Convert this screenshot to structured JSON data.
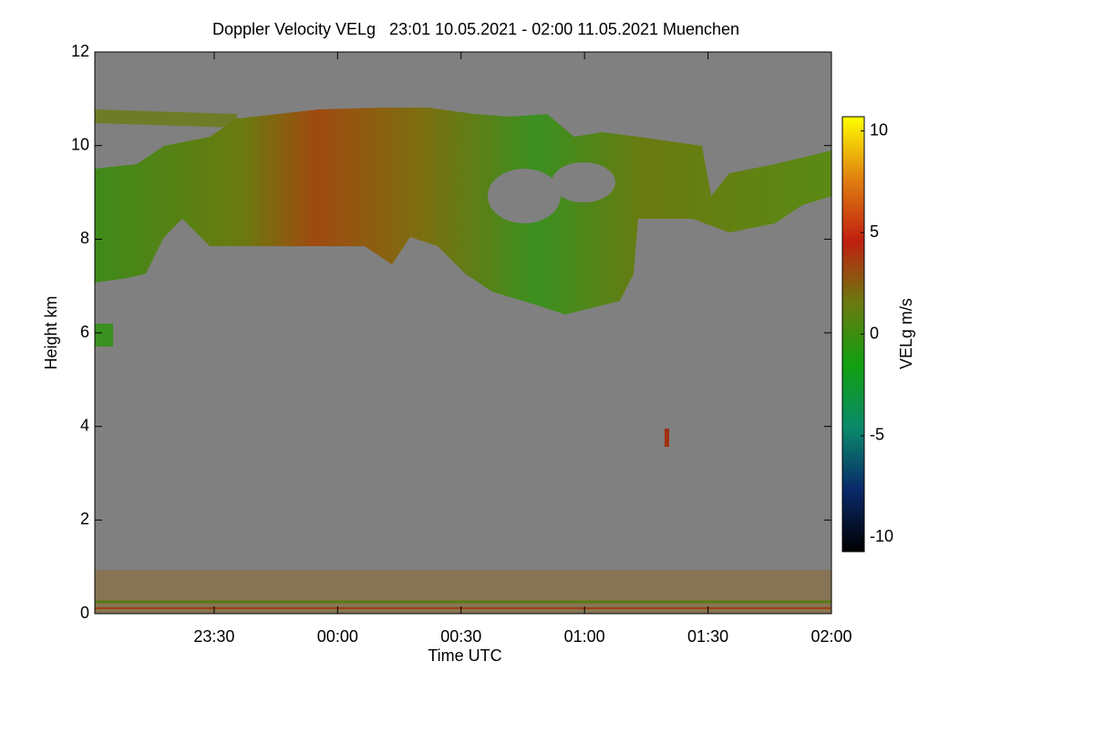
{
  "chart_data": {
    "type": "heatmap",
    "title": "Doppler Velocity VELg   23:01 10.05.2021 - 02:00 11.05.2021 Muenchen",
    "x_label": "Time UTC",
    "y_label": "Height km",
    "colorbar_label": "VELg m/s",
    "xlim": [
      1381,
      1560
    ],
    "xticks": [
      {
        "value": 1410,
        "label": "23:30"
      },
      {
        "value": 1440,
        "label": "00:00"
      },
      {
        "value": 1470,
        "label": "00:30"
      },
      {
        "value": 1500,
        "label": "01:00"
      },
      {
        "value": 1530,
        "label": "01:30"
      },
      {
        "value": 1560,
        "label": "02:00"
      }
    ],
    "ylim": [
      0,
      12
    ],
    "yticks": [
      0,
      2,
      4,
      6,
      8,
      10,
      12
    ],
    "clim": [
      -10.7,
      10.7
    ],
    "cticks": [
      -10,
      -5,
      0,
      5,
      10
    ],
    "colorscale": [
      "#000000",
      "#0a2a6a",
      "#0a8a6a",
      "#10a010",
      "#6a7a10",
      "#c02010",
      "#e08010",
      "#ffff00"
    ],
    "background": "#808080"
  }
}
